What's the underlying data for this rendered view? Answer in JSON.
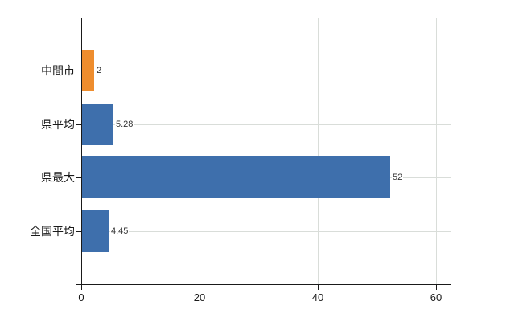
{
  "chart_data": {
    "type": "bar",
    "orientation": "horizontal",
    "title": "",
    "categories": [
      "中間市",
      "県平均",
      "県最大",
      "全国平均"
    ],
    "values": [
      2,
      5.28,
      52,
      4.45
    ],
    "value_labels": [
      "2",
      "5.28",
      "52",
      "4.45"
    ],
    "bar_colors": [
      "#ee8d2e",
      "#3e6fac",
      "#3e6fac",
      "#3e6fac"
    ],
    "x_ticks": [
      0,
      20,
      40,
      60
    ],
    "x_tick_labels": [
      "0",
      "20",
      "40",
      "60"
    ],
    "xlim": [
      0,
      62.4
    ],
    "grid": true,
    "legend": false,
    "colors": {
      "background": "#ffffff",
      "axis": "#1a1a1a",
      "gridline": "#d9ddd9",
      "category_label": "#1a1a1a",
      "value_label": "#333333",
      "orange_bar": "#ee8d2e",
      "blue_bar": "#3e6fac"
    }
  }
}
